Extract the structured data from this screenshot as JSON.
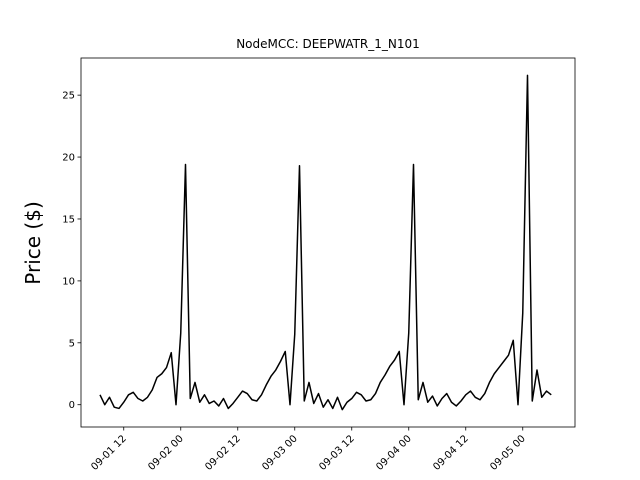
{
  "chart_data": {
    "type": "line",
    "title": "NodeMCC: DEEPWATR_1_N101",
    "y_label": "Price ($)",
    "color": "#000000",
    "x": [
      "09-01 07",
      "09-01 08",
      "09-01 09",
      "09-01 10",
      "09-01 11",
      "09-01 12",
      "09-01 13",
      "09-01 14",
      "09-01 15",
      "09-01 16",
      "09-01 17",
      "09-01 18",
      "09-01 19",
      "09-01 20",
      "09-01 21",
      "09-01 22",
      "09-01 23",
      "09-02 00",
      "09-02 01",
      "09-02 02",
      "09-02 03",
      "09-02 04",
      "09-02 05",
      "09-02 06",
      "09-02 07",
      "09-02 08",
      "09-02 09",
      "09-02 10",
      "09-02 11",
      "09-02 12",
      "09-02 13",
      "09-02 14",
      "09-02 15",
      "09-02 16",
      "09-02 17",
      "09-02 18",
      "09-02 19",
      "09-02 20",
      "09-02 21",
      "09-02 22",
      "09-02 23",
      "09-03 00",
      "09-03 01",
      "09-03 02",
      "09-03 03",
      "09-03 04",
      "09-03 05",
      "09-03 06",
      "09-03 07",
      "09-03 08",
      "09-03 09",
      "09-03 10",
      "09-03 11",
      "09-03 12",
      "09-03 13",
      "09-03 14",
      "09-03 15",
      "09-03 16",
      "09-03 17",
      "09-03 18",
      "09-03 19",
      "09-03 20",
      "09-03 21",
      "09-03 22",
      "09-03 23",
      "09-04 00",
      "09-04 01",
      "09-04 02",
      "09-04 03",
      "09-04 04",
      "09-04 05",
      "09-04 06",
      "09-04 07",
      "09-04 08",
      "09-04 09",
      "09-04 10",
      "09-04 11",
      "09-04 12",
      "09-04 13",
      "09-04 14",
      "09-04 15",
      "09-04 16",
      "09-04 17",
      "09-04 18",
      "09-04 19",
      "09-04 20",
      "09-04 21",
      "09-04 22",
      "09-04 23",
      "09-05 00",
      "09-05 01",
      "09-05 02",
      "09-05 03",
      "09-05 04",
      "09-05 05",
      "09-05 06"
    ],
    "values": [
      0.8,
      0.0,
      0.6,
      -0.2,
      -0.3,
      0.2,
      0.8,
      1.0,
      0.5,
      0.3,
      0.6,
      1.2,
      2.2,
      2.5,
      3.0,
      4.2,
      0.0,
      5.8,
      19.4,
      0.5,
      1.8,
      0.2,
      0.8,
      0.1,
      0.3,
      -0.1,
      0.5,
      -0.3,
      0.1,
      0.6,
      1.1,
      0.9,
      0.4,
      0.3,
      0.8,
      1.6,
      2.3,
      2.8,
      3.5,
      4.3,
      0.0,
      5.7,
      19.3,
      0.3,
      1.8,
      0.1,
      0.9,
      -0.2,
      0.4,
      -0.3,
      0.6,
      -0.4,
      0.2,
      0.5,
      1.0,
      0.8,
      0.3,
      0.4,
      0.9,
      1.8,
      2.4,
      3.1,
      3.6,
      4.3,
      0.0,
      5.8,
      19.4,
      0.4,
      1.8,
      0.2,
      0.7,
      -0.1,
      0.5,
      0.9,
      0.2,
      -0.1,
      0.3,
      0.8,
      1.1,
      0.6,
      0.4,
      0.9,
      1.8,
      2.5,
      3.0,
      3.5,
      4.0,
      5.2,
      0.0,
      7.4,
      26.6,
      0.3,
      2.8,
      0.6,
      1.1,
      0.8
    ],
    "xlim": [
      "09-01 03",
      "09-05 11"
    ],
    "xticks": [
      "09-01 12",
      "09-02 00",
      "09-02 12",
      "09-03 00",
      "09-03 12",
      "09-04 00",
      "09-04 12",
      "09-05 00"
    ],
    "ylim": [
      -1.8,
      28
    ],
    "yticks": [
      0,
      5,
      10,
      15,
      20,
      25
    ]
  }
}
